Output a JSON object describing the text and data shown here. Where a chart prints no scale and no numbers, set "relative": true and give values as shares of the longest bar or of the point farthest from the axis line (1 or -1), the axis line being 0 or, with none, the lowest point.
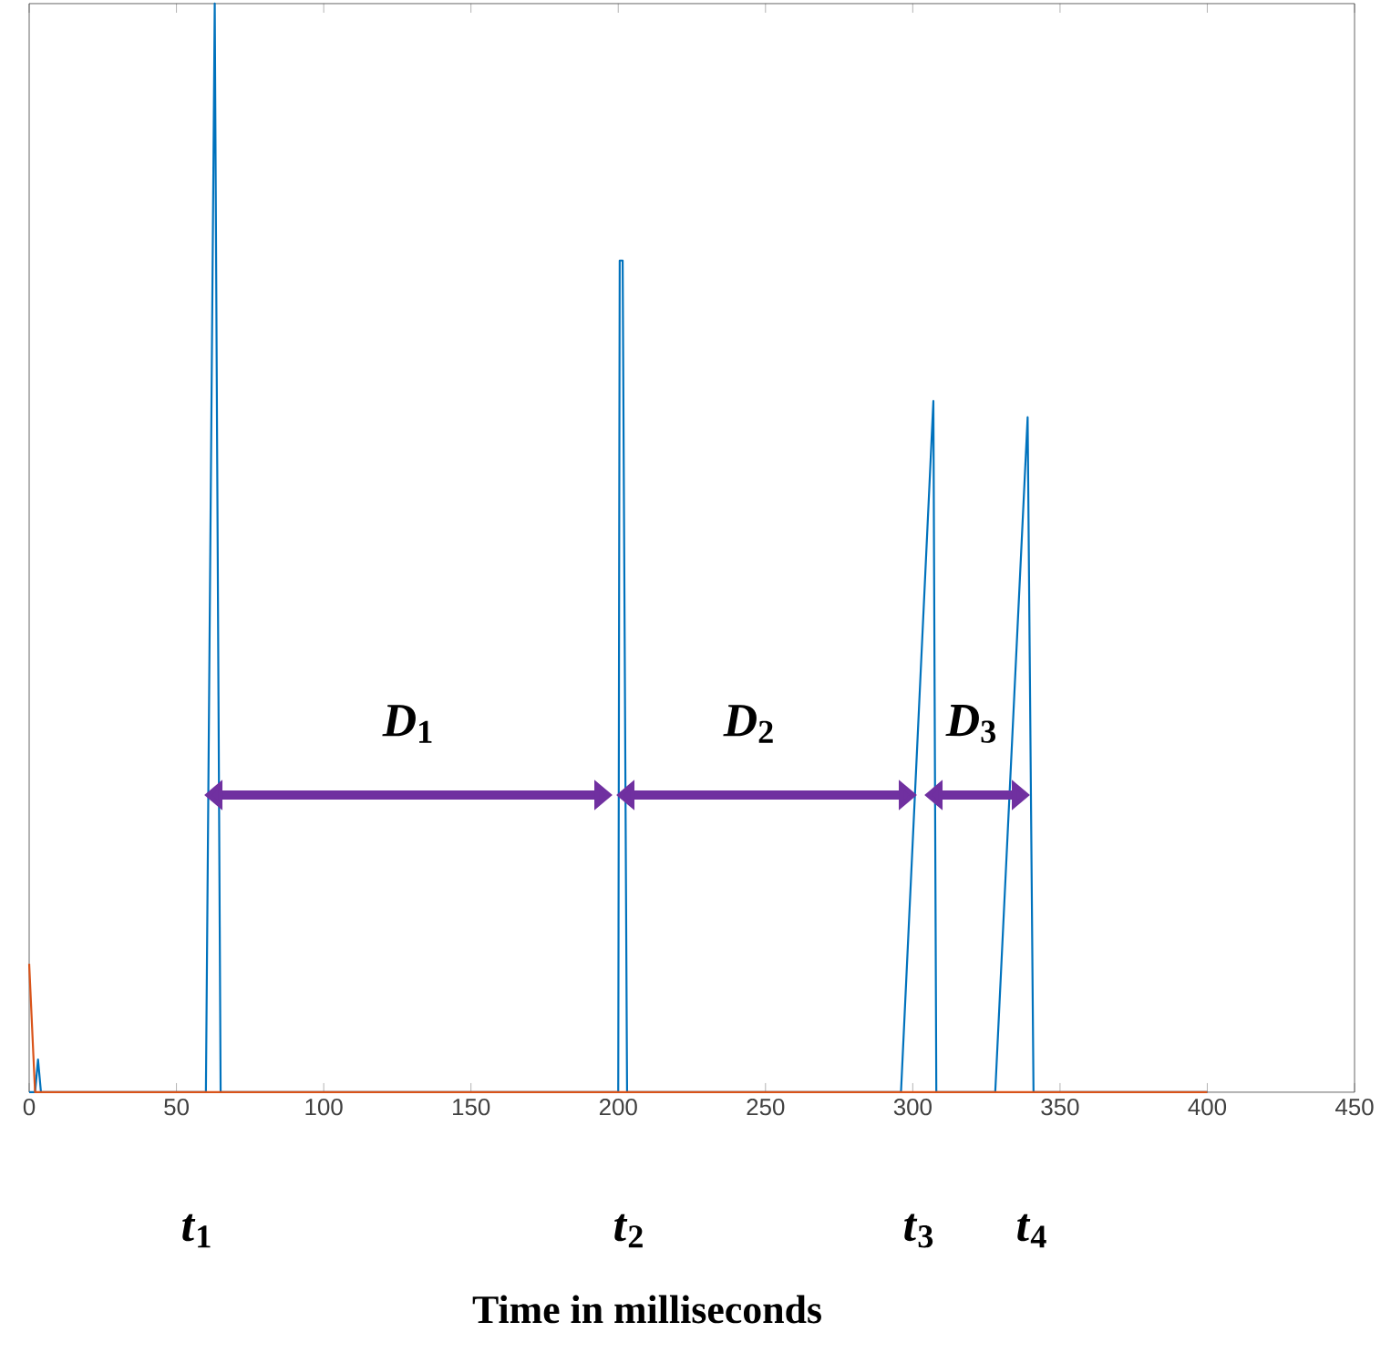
{
  "chart_data": {
    "type": "line",
    "xlabel": "Time in milliseconds",
    "relative": true,
    "xlim": [
      0,
      450
    ],
    "xticks": [
      0,
      50,
      100,
      150,
      200,
      250,
      300,
      350,
      400,
      450
    ],
    "series": [
      {
        "color": "#0072bd",
        "x": [
          0,
          2,
          3,
          4,
          60,
          63,
          65,
          200,
          200.5,
          201.5,
          203,
          296,
          307,
          308,
          328,
          339,
          341,
          400
        ],
        "values": [
          0,
          0,
          0.03,
          0,
          0,
          1,
          0,
          0,
          0.764,
          0.764,
          0,
          0,
          0.635,
          0,
          0,
          0.62,
          0,
          0
        ]
      },
      {
        "color": "#d95319",
        "x": [
          0,
          2,
          400
        ],
        "values": [
          0.118,
          0,
          0
        ]
      }
    ],
    "annotations": [
      "*t*$_{1}$",
      "*t*$_{2}$",
      "*t*$_{3}$",
      "*t*$_{4}$",
      "*D*$_{1}$",
      "*D*$_{2}$",
      "*D*$_{3}$"
    ]
  }
}
